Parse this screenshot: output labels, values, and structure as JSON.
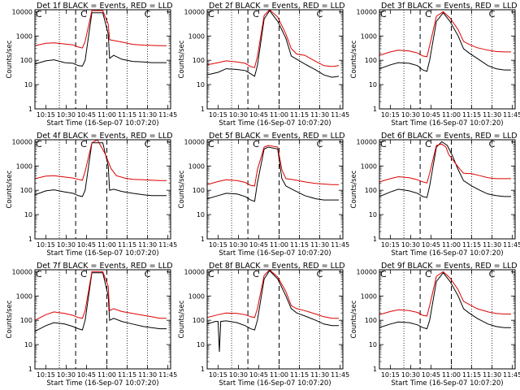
{
  "chart_data": {
    "type": "line",
    "ylabel": "Counts/sec",
    "xlabel": "Start Time (16-Sep-07 10:07:20)",
    "x_tick_labels": [
      "10:15",
      "10:30",
      "10:45",
      "11:00",
      "11:15",
      "11:30",
      "11:45"
    ],
    "y_tick_labels": [
      "1",
      "10",
      "100",
      "1000",
      "10000"
    ],
    "y_scale": "log",
    "ylim": [
      1,
      12000
    ],
    "x_range_minutes": [
      0,
      100
    ],
    "dotted_lines_at": [
      "10:25",
      "11:15",
      "11:30"
    ],
    "dashed_lines_at": [
      "10:37",
      "11:00"
    ],
    "top_marker_labels": [
      "C",
      "C",
      "C"
    ],
    "colors": {
      "events": "#000000",
      "lld": "#dd0000"
    },
    "panels": [
      {
        "title": "Det 1f BLACK = Events, RED = LLD",
        "series": [
          {
            "name": "Events",
            "x": [
              0,
              8,
              14,
              22,
              28,
              32,
              35,
              37,
              42,
              50,
              54,
              55,
              58,
              64,
              72,
              80,
              86,
              92,
              97
            ],
            "y": [
              70,
              95,
              105,
              80,
              75,
              60,
              58,
              100,
              9000,
              9000,
              1200,
              120,
              160,
              110,
              90,
              85,
              80,
              80,
              80
            ]
          },
          {
            "name": "LLD",
            "x": [
              0,
              8,
              14,
              22,
              28,
              32,
              35,
              37,
              42,
              50,
              54,
              55,
              58,
              64,
              72,
              80,
              86,
              92,
              97
            ],
            "y": [
              400,
              500,
              520,
              470,
              430,
              350,
              320,
              600,
              11000,
              11000,
              3000,
              700,
              650,
              560,
              450,
              420,
              410,
              400,
              400
            ]
          }
        ]
      },
      {
        "title": "Det 2f BLACK = Events, RED = LLD",
        "series": [
          {
            "name": "Events",
            "x": [
              0,
              8,
              14,
              22,
              28,
              32,
              35,
              37,
              42,
              46,
              52,
              58,
              62,
              66,
              72,
              80,
              86,
              92,
              97
            ],
            "y": [
              25,
              32,
              45,
              42,
              38,
              28,
              22,
              60,
              5000,
              11000,
              4000,
              800,
              150,
              110,
              70,
              40,
              25,
              20,
              22
            ]
          },
          {
            "name": "LLD",
            "x": [
              0,
              8,
              14,
              22,
              28,
              32,
              35,
              37,
              42,
              46,
              52,
              58,
              62,
              66,
              72,
              80,
              86,
              92,
              97
            ],
            "y": [
              65,
              80,
              95,
              85,
              75,
              55,
              50,
              140,
              7000,
              12000,
              6000,
              1200,
              300,
              180,
              160,
              90,
              60,
              55,
              60
            ]
          }
        ]
      },
      {
        "title": "Det 3f BLACK = Events, RED = LLD",
        "series": [
          {
            "name": "Events",
            "x": [
              0,
              8,
              14,
              22,
              28,
              32,
              35,
              37,
              42,
              47,
              52,
              58,
              62,
              66,
              72,
              80,
              86,
              92,
              97
            ],
            "y": [
              45,
              65,
              80,
              75,
              60,
              40,
              35,
              100,
              4000,
              9000,
              4000,
              1000,
              300,
              200,
              120,
              60,
              45,
              40,
              40
            ]
          },
          {
            "name": "LLD",
            "x": [
              0,
              8,
              14,
              22,
              28,
              32,
              35,
              37,
              42,
              47,
              52,
              58,
              62,
              66,
              72,
              80,
              86,
              92,
              97
            ],
            "y": [
              160,
              220,
              260,
              240,
              200,
              150,
              140,
              400,
              6500,
              10000,
              5500,
              1800,
              600,
              450,
              330,
              260,
              230,
              220,
              220
            ]
          }
        ]
      },
      {
        "title": "Det 4f BLACK = Events, RED = LLD",
        "series": [
          {
            "name": "Events",
            "x": [
              0,
              8,
              14,
              22,
              28,
              32,
              35,
              37,
              42,
              50,
              54,
              55,
              58,
              64,
              72,
              80,
              86,
              92,
              97
            ],
            "y": [
              65,
              95,
              105,
              85,
              75,
              60,
              55,
              100,
              9000,
              9000,
              1000,
              100,
              110,
              90,
              75,
              65,
              60,
              60,
              60
            ]
          },
          {
            "name": "LLD",
            "x": [
              0,
              8,
              14,
              22,
              28,
              32,
              35,
              37,
              42,
              46,
              52,
              56,
              60,
              66,
              72,
              80,
              86,
              92,
              97
            ],
            "y": [
              300,
              380,
              400,
              350,
              320,
              280,
              260,
              600,
              9000,
              12000,
              3000,
              800,
              400,
              320,
              280,
              270,
              260,
              250,
              250
            ]
          }
        ]
      },
      {
        "title": "Det 5f BLACK = Events, RED = LLD",
        "series": [
          {
            "name": "Events",
            "x": [
              0,
              8,
              14,
              22,
              28,
              32,
              35,
              37,
              42,
              45,
              52,
              55,
              58,
              64,
              72,
              80,
              86,
              92,
              97
            ],
            "y": [
              45,
              60,
              75,
              70,
              55,
              40,
              35,
              200,
              5000,
              6000,
              5000,
              300,
              150,
              100,
              60,
              45,
              40,
              40,
              40
            ]
          },
          {
            "name": "LLD",
            "x": [
              0,
              8,
              14,
              22,
              28,
              32,
              35,
              37,
              42,
              45,
              52,
              55,
              58,
              64,
              72,
              80,
              86,
              92,
              97
            ],
            "y": [
              170,
              230,
              270,
              250,
              210,
              160,
              150,
              700,
              6000,
              7000,
              6000,
              700,
              300,
              270,
              220,
              190,
              180,
              170,
              170
            ]
          }
        ]
      },
      {
        "title": "Det 6f BLACK = Events, RED = LLD",
        "series": [
          {
            "name": "Events",
            "x": [
              0,
              8,
              14,
              22,
              28,
              32,
              35,
              37,
              42,
              46,
              50,
              54,
              58,
              62,
              68,
              74,
              80,
              86,
              92,
              97
            ],
            "y": [
              55,
              85,
              110,
              95,
              75,
              55,
              50,
              150,
              6000,
              10000,
              7000,
              2500,
              700,
              250,
              150,
              100,
              70,
              60,
              55,
              55
            ]
          },
          {
            "name": "LLD",
            "x": [
              0,
              8,
              14,
              22,
              28,
              32,
              35,
              37,
              42,
              46,
              49,
              51,
              54,
              58,
              62,
              68,
              74,
              80,
              86,
              92,
              97
            ],
            "y": [
              220,
              300,
              360,
              330,
              270,
              220,
              200,
              500,
              7000,
              8000,
              6000,
              3000,
              1800,
              900,
              500,
              480,
              400,
              330,
              300,
              300,
              300
            ]
          }
        ]
      },
      {
        "title": "Det 7f BLACK = Events, RED = LLD",
        "series": [
          {
            "name": "Events",
            "x": [
              0,
              8,
              14,
              22,
              28,
              32,
              35,
              37,
              42,
              50,
              54,
              55,
              58,
              64,
              72,
              80,
              86,
              92,
              97
            ],
            "y": [
              35,
              60,
              80,
              70,
              55,
              45,
              40,
              100,
              9000,
              9000,
              1000,
              100,
              120,
              90,
              70,
              55,
              50,
              45,
              45
            ]
          },
          {
            "name": "LLD",
            "x": [
              0,
              8,
              14,
              22,
              28,
              32,
              35,
              37,
              42,
              50,
              54,
              55,
              58,
              64,
              72,
              80,
              86,
              92,
              97
            ],
            "y": [
              100,
              170,
              220,
              190,
              160,
              130,
              120,
              250,
              10000,
              10000,
              2500,
              250,
              300,
              230,
              190,
              160,
              140,
              120,
              120
            ]
          }
        ]
      },
      {
        "title": "Det 8f BLACK = Events, RED = LLD",
        "series": [
          {
            "name": "Events",
            "x": [
              0,
              6,
              8,
              9,
              10,
              14,
              22,
              28,
              32,
              35,
              37,
              42,
              46,
              52,
              58,
              62,
              66,
              72,
              80,
              86,
              92,
              97
            ],
            "y": [
              70,
              90,
              90,
              5,
              90,
              95,
              80,
              60,
              45,
              40,
              100,
              5000,
              11000,
              5000,
              1000,
              300,
              200,
              150,
              100,
              70,
              60,
              60
            ]
          },
          {
            "name": "LLD",
            "x": [
              0,
              8,
              14,
              22,
              28,
              32,
              35,
              37,
              42,
              46,
              52,
              58,
              62,
              66,
              72,
              80,
              86,
              92,
              97
            ],
            "y": [
              130,
              170,
              200,
              190,
              170,
              140,
              130,
              300,
              7000,
              12000,
              6000,
              1500,
              400,
              300,
              250,
              180,
              140,
              120,
              120
            ]
          }
        ]
      },
      {
        "title": "Det 9f BLACK = Events, RED = LLD",
        "series": [
          {
            "name": "Events",
            "x": [
              0,
              8,
              14,
              22,
              28,
              32,
              35,
              37,
              42,
              47,
              52,
              58,
              62,
              66,
              72,
              80,
              86,
              92,
              97
            ],
            "y": [
              50,
              70,
              85,
              80,
              65,
              50,
              45,
              100,
              4000,
              9000,
              4000,
              1000,
              300,
              200,
              120,
              70,
              55,
              50,
              50
            ]
          },
          {
            "name": "LLD",
            "x": [
              0,
              8,
              14,
              22,
              28,
              32,
              35,
              37,
              42,
              47,
              52,
              58,
              62,
              66,
              72,
              80,
              86,
              92,
              97
            ],
            "y": [
              170,
              230,
              270,
              250,
              210,
              160,
              150,
              400,
              6500,
              10000,
              5500,
              1800,
              600,
              450,
              300,
              220,
              190,
              180,
              180
            ]
          }
        ]
      }
    ]
  }
}
